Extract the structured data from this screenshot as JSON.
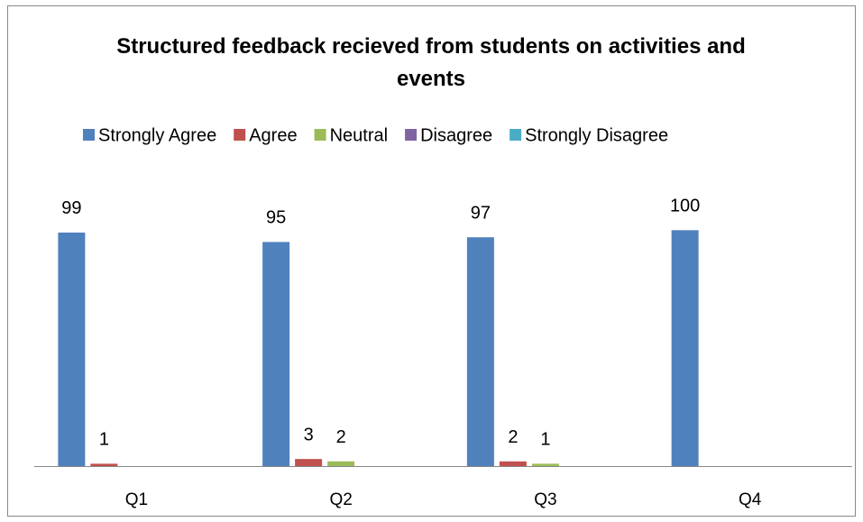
{
  "chart_data": {
    "type": "bar",
    "title": "Structured feedback recieved from students on activities and events",
    "categories": [
      "Q1",
      "Q2",
      "Q3",
      "Q4"
    ],
    "series": [
      {
        "name": "Strongly Agree",
        "color": "#4f81bd",
        "values": [
          99,
          95,
          97,
          100
        ]
      },
      {
        "name": "Agree",
        "color": "#c0504d",
        "values": [
          1,
          3,
          2,
          null
        ]
      },
      {
        "name": "Neutral",
        "color": "#9bbb59",
        "values": [
          null,
          2,
          1,
          null
        ]
      },
      {
        "name": "Disagree",
        "color": "#8064a2",
        "values": [
          null,
          null,
          null,
          null
        ]
      },
      {
        "name": "Strongly Disagree",
        "color": "#4bacc6",
        "values": [
          null,
          null,
          null,
          null
        ]
      }
    ],
    "ylim": [
      0,
      120
    ],
    "legend": "top"
  }
}
